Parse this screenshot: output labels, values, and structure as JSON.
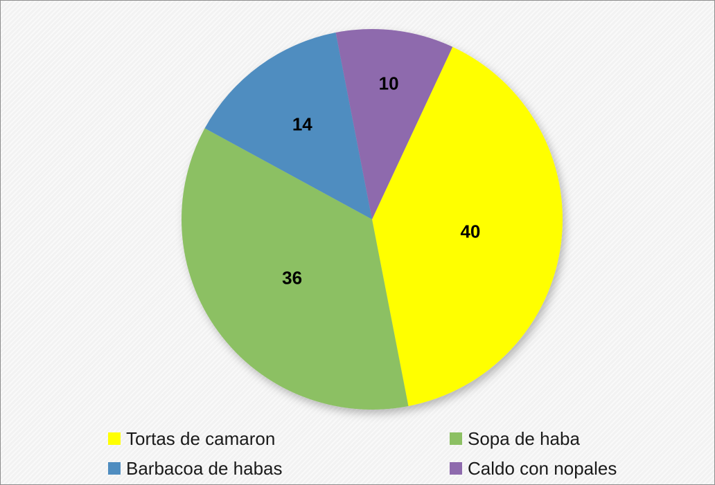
{
  "chart_data": {
    "type": "pie",
    "title": "",
    "categories": [
      "Tortas de camaron",
      "Sopa de haba",
      "Barbacoa de habas",
      "Caldo con nopales"
    ],
    "values": [
      40,
      36,
      14,
      10
    ],
    "data_labels": [
      "40",
      "36",
      "14",
      "10"
    ],
    "colors": [
      "#ffff00",
      "#8cc063",
      "#4f8dc0",
      "#8e6aad"
    ],
    "legend_position": "bottom",
    "start_angle_deg": 25,
    "direction": "clockwise"
  }
}
